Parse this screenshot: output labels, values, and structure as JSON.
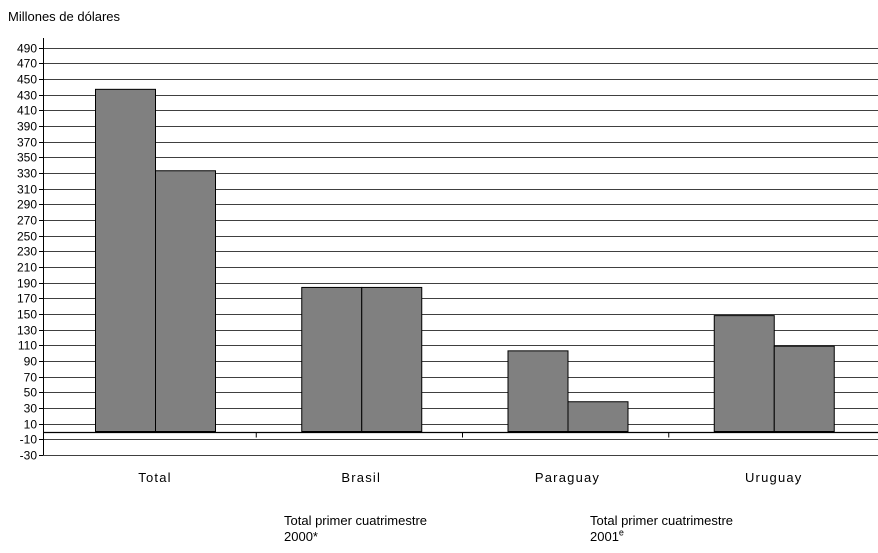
{
  "chart_data": {
    "type": "bar",
    "ylabel": "Millones de dólares",
    "categories": [
      "Total",
      "Brasil",
      "Paraguay",
      "Uruguay"
    ],
    "series": [
      {
        "name": "Total primer cuatrimestre 2000*",
        "label_lines": [
          "Total primer cuatrimestre",
          "2000*"
        ],
        "values": [
          437,
          184,
          103,
          148
        ]
      },
      {
        "name": "Total primer cuatrimestre 2001e",
        "label_lines": [
          "Total primer cuatrimestre",
          "2001"
        ],
        "label_superscript": "e",
        "values": [
          333,
          184,
          38,
          109
        ]
      }
    ],
    "ylim": [
      -30,
      500
    ],
    "yticks": [
      -30,
      -10,
      10,
      30,
      50,
      70,
      90,
      110,
      130,
      150,
      170,
      190,
      210,
      230,
      250,
      270,
      290,
      310,
      330,
      350,
      370,
      390,
      410,
      430,
      450,
      470,
      490
    ],
    "grid": true,
    "legend_placement": "bottom",
    "colors": {
      "bar_fill": "#808080",
      "bar_stroke": "#000000",
      "grid": "#000000",
      "axis": "#000000"
    }
  }
}
